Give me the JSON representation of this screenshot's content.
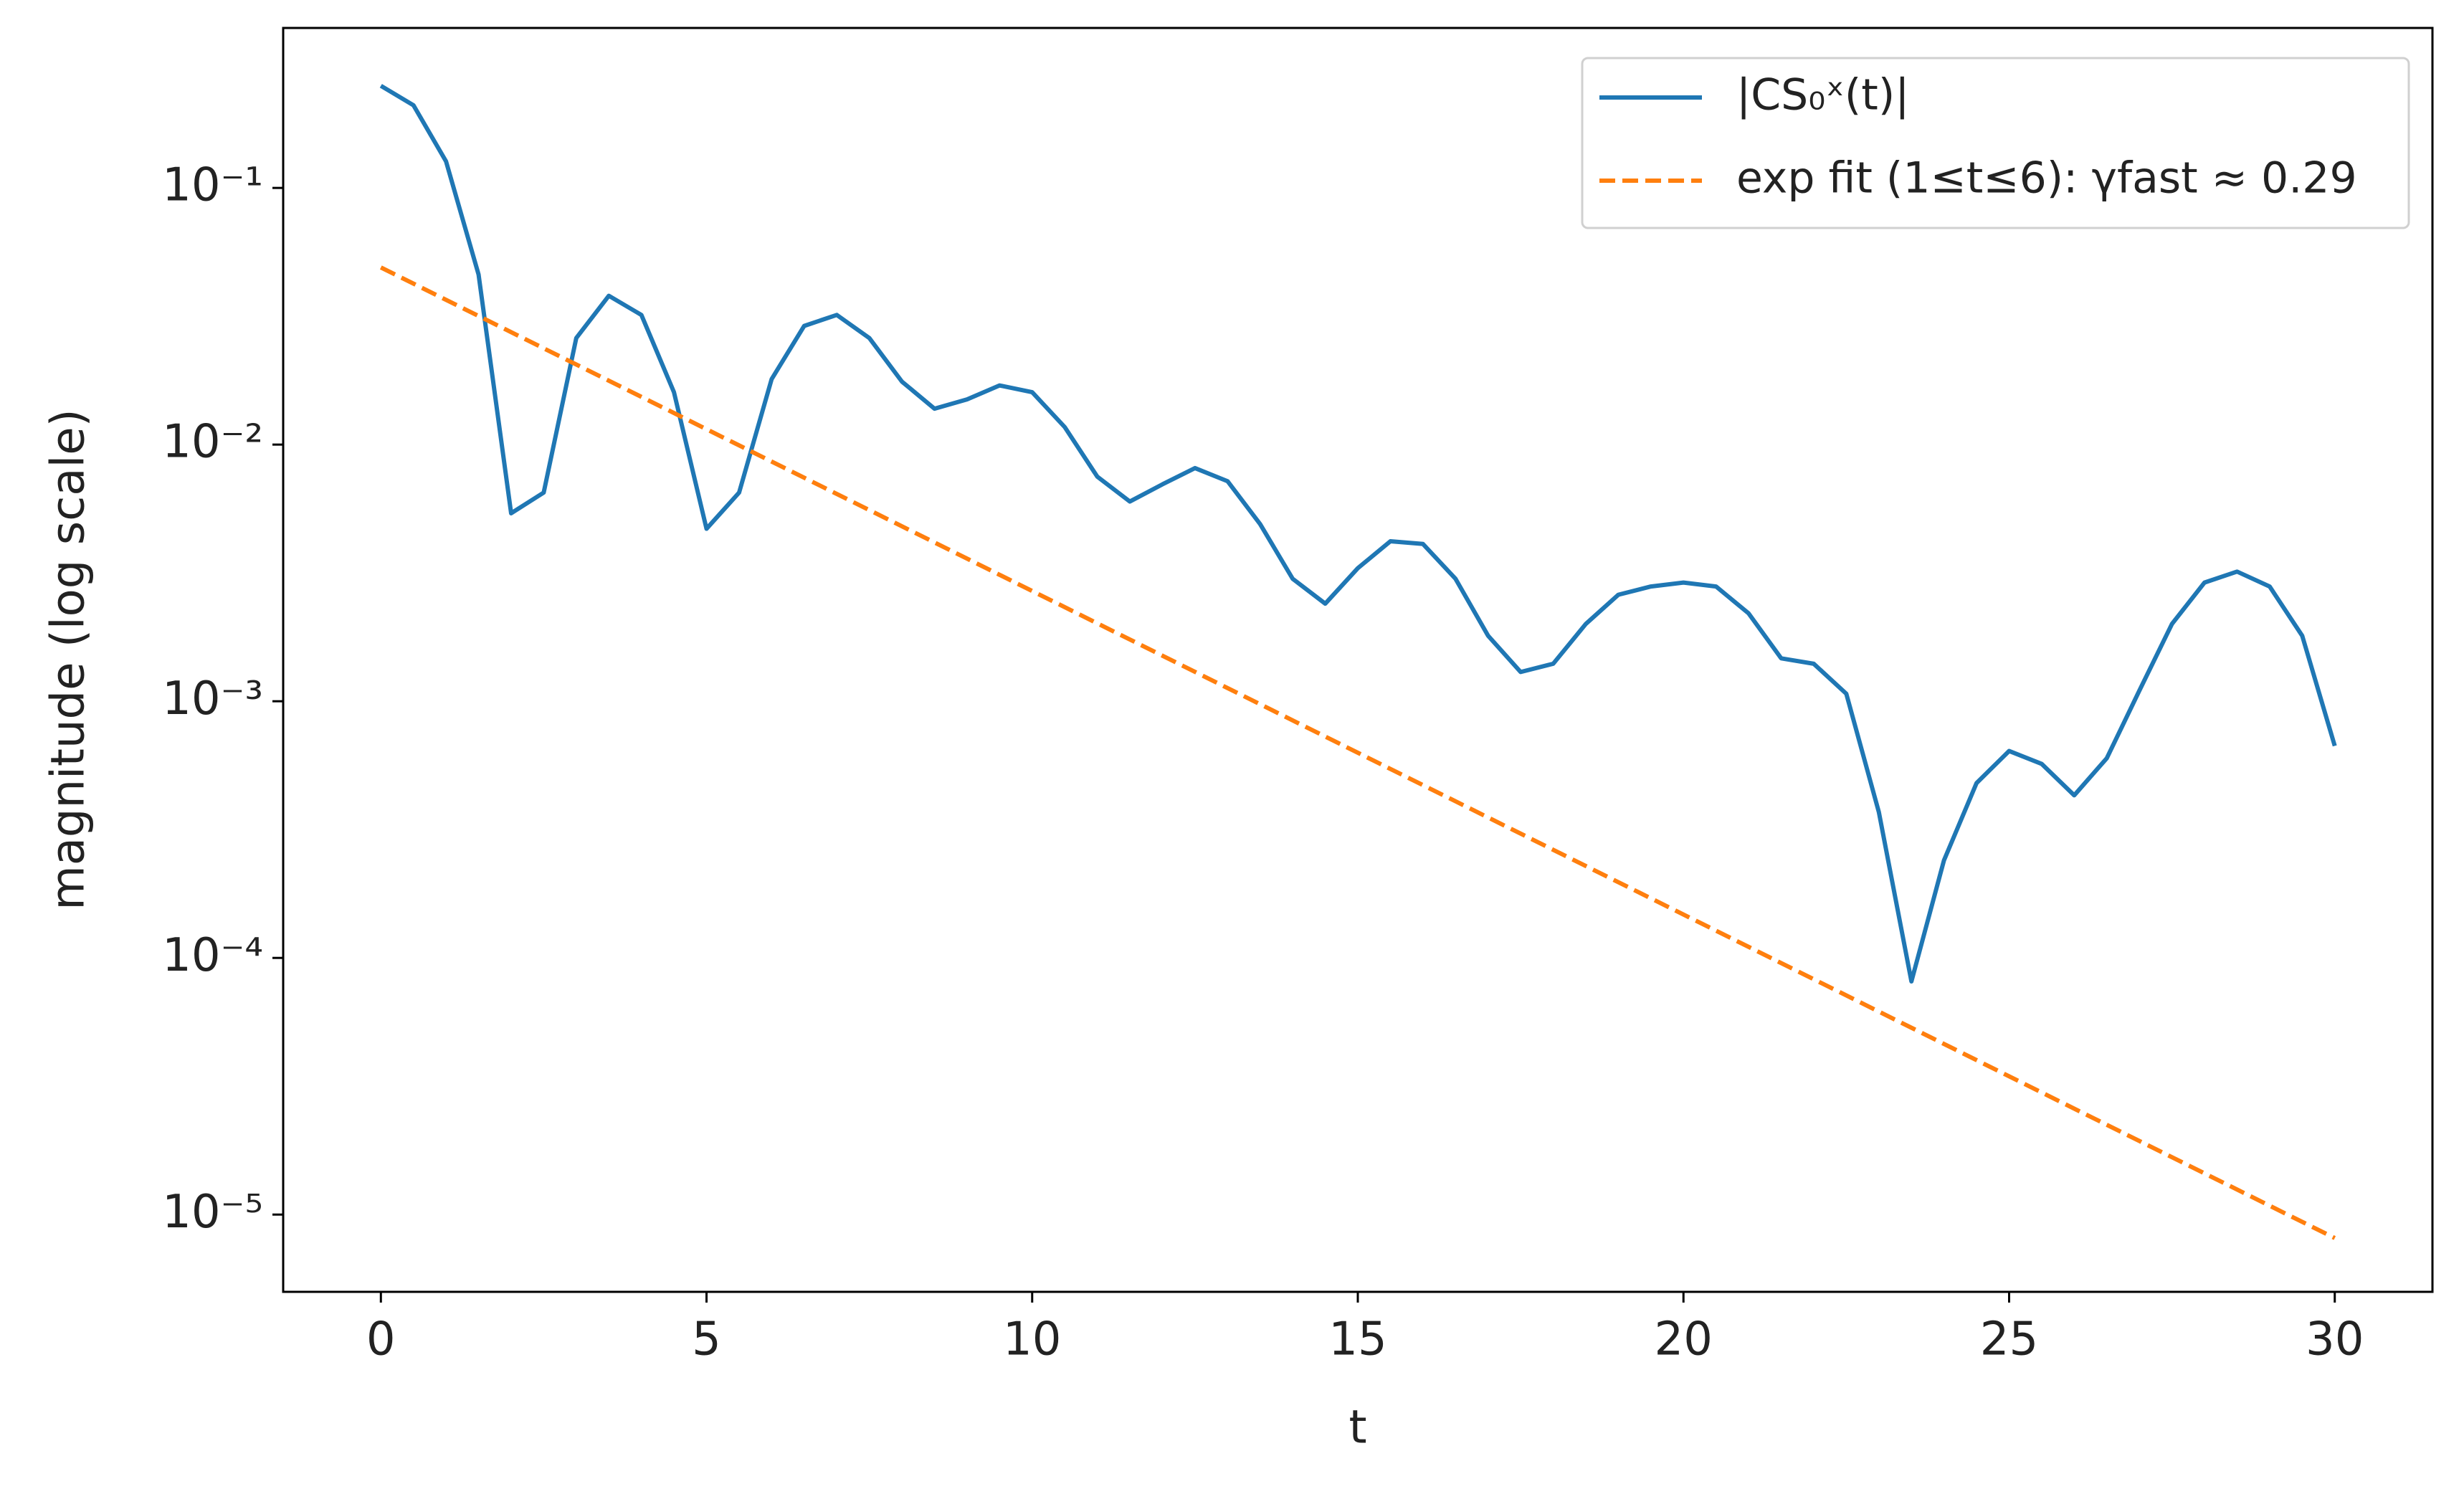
{
  "chart_data": {
    "type": "line",
    "xlabel": "t",
    "ylabel": "magnitude (log scale)",
    "xlim": [
      -1.5,
      31.5
    ],
    "xticks": [
      0,
      5,
      10,
      15,
      20,
      25,
      30
    ],
    "ylim": [
      5e-06,
      0.42
    ],
    "yscale": "log",
    "yticks": [
      {
        "value": 0.1,
        "label": "10⁻¹"
      },
      {
        "value": 0.01,
        "label": "10⁻²"
      },
      {
        "value": 0.001,
        "label": "10⁻³"
      },
      {
        "value": 0.0001,
        "label": "10⁻⁴"
      },
      {
        "value": 1e-05,
        "label": "10⁻⁵"
      }
    ],
    "grid": false,
    "legend": "upper right",
    "series": [
      {
        "name": "|CS₀ˣ(t)|",
        "color": "#1f77b4",
        "style": "solid",
        "x": [
          0,
          0.5,
          1,
          1.5,
          2,
          2.5,
          3,
          3.5,
          4,
          4.5,
          5,
          5.5,
          6,
          6.5,
          7,
          7.5,
          8,
          8.5,
          9,
          9.5,
          10,
          10.5,
          11,
          11.5,
          12,
          12.5,
          13,
          13.5,
          14,
          14.5,
          15,
          15.5,
          16,
          16.5,
          17,
          17.5,
          18,
          18.5,
          19,
          19.5,
          20,
          20.5,
          21,
          21.5,
          22,
          22.5,
          23,
          23.5,
          24,
          24.5,
          25,
          25.5,
          26,
          26.5,
          27,
          27.5,
          28,
          28.5,
          29,
          29.5,
          30
        ],
        "values": [
          0.25,
          0.21,
          0.127,
          0.046,
          0.0054,
          0.0065,
          0.026,
          0.038,
          0.032,
          0.016,
          0.0047,
          0.0065,
          0.018,
          0.029,
          0.032,
          0.026,
          0.0176,
          0.0138,
          0.015,
          0.017,
          0.016,
          0.0117,
          0.0075,
          0.006,
          0.007,
          0.0081,
          0.0072,
          0.0049,
          0.003,
          0.0024,
          0.0033,
          0.0042,
          0.0041,
          0.003,
          0.0018,
          0.0013,
          0.0014,
          0.002,
          0.0026,
          0.0028,
          0.0029,
          0.0028,
          0.0022,
          0.00147,
          0.0014,
          0.00107,
          0.00037,
          8.1e-05,
          0.00024,
          0.00048,
          0.00064,
          0.00057,
          0.00043,
          0.0006,
          0.0011,
          0.002,
          0.0029,
          0.0032,
          0.0028,
          0.0018,
          0.00067
        ]
      },
      {
        "name": "exp fit (1≤t≤6): γfast ≈ 0.29",
        "color": "#ff7f0e",
        "style": "dashed",
        "x": [
          0,
          30
        ],
        "values": [
          0.049,
          8.1e-06
        ]
      }
    ]
  }
}
